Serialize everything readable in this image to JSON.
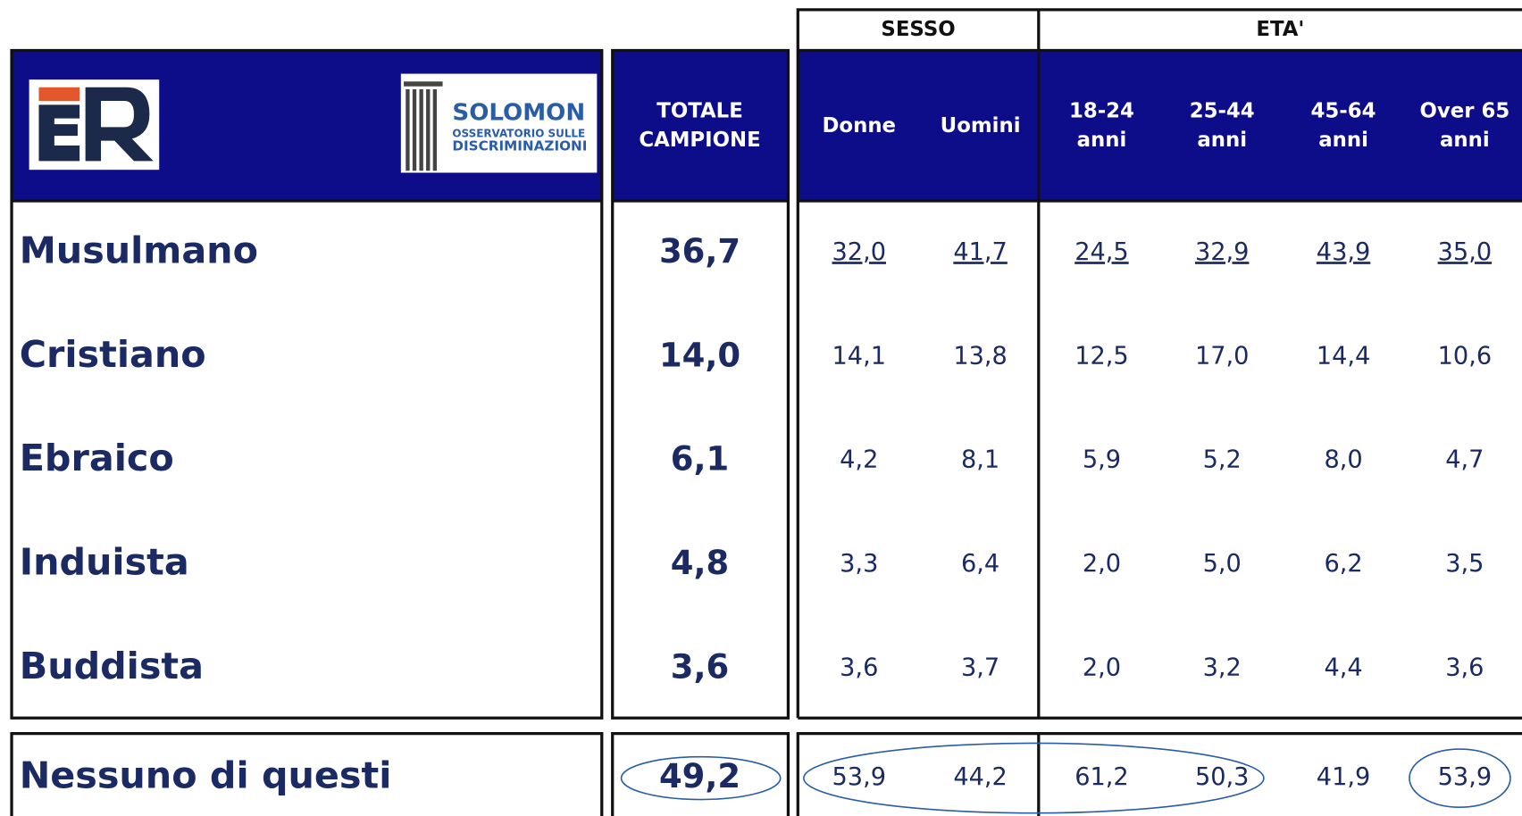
{
  "logos": {
    "brand": "SOLOMON",
    "subtitle_1": "OSSERVATORIO SULLE",
    "subtitle_2": "DISCRIMINAZIONI"
  },
  "groups": [
    "SESSO",
    "ETA'"
  ],
  "total_header": [
    "TOTALE",
    "CAMPIONE"
  ],
  "columns": [
    [
      "Donne"
    ],
    [
      "Uomini"
    ],
    [
      "18-24",
      "anni"
    ],
    [
      "25-44",
      "anni"
    ],
    [
      "45-64",
      "anni"
    ],
    [
      "Over 65",
      "anni"
    ]
  ],
  "rows": [
    {
      "label": "Musulmano",
      "total": "36,7",
      "values": [
        "32,0",
        "41,7",
        "24,5",
        "32,9",
        "43,9",
        "35,0"
      ]
    },
    {
      "label": "Cristiano",
      "total": "14,0",
      "values": [
        "14,1",
        "13,8",
        "12,5",
        "17,0",
        "14,4",
        "10,6"
      ]
    },
    {
      "label": "Ebraico",
      "total": "6,1",
      "values": [
        "4,2",
        "8,1",
        "5,9",
        "5,2",
        "8,0",
        "4,7"
      ]
    },
    {
      "label": "Induista",
      "total": "4,8",
      "values": [
        "3,3",
        "6,4",
        "2,0",
        "5,0",
        "6,2",
        "3,5"
      ]
    },
    {
      "label": "Buddista",
      "total": "3,6",
      "values": [
        "3,6",
        "3,7",
        "2,0",
        "3,2",
        "4,4",
        "3,6"
      ]
    },
    {
      "label": "Nessuno di questi",
      "total": "49,2",
      "values": [
        "53,9",
        "44,2",
        "61,2",
        "50,3",
        "41,9",
        "53,9"
      ]
    }
  ]
}
